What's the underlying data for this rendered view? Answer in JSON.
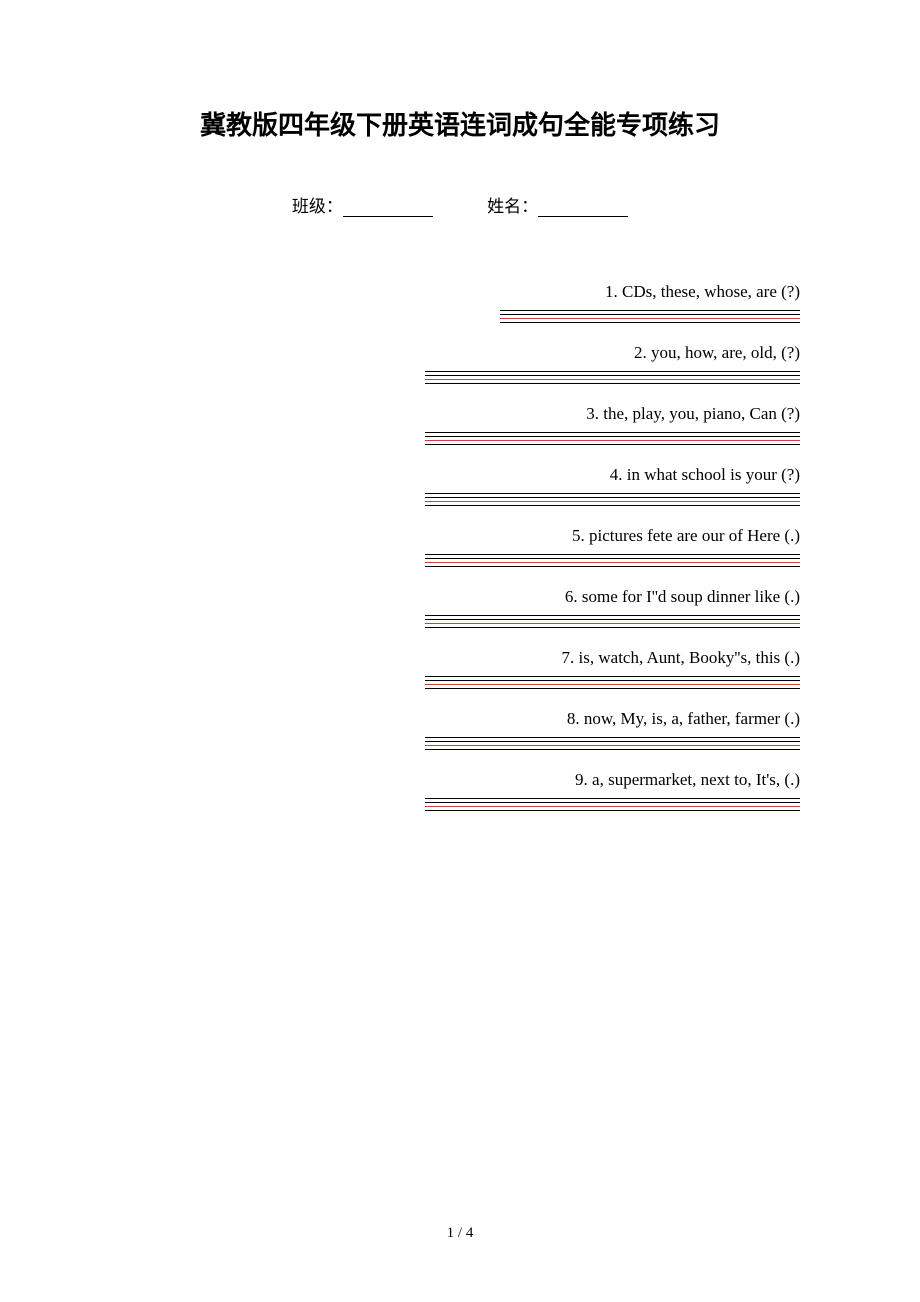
{
  "title": "冀教版四年级下册英语连词成句全能专项练习",
  "header": {
    "class_label": "班级：",
    "name_label": "姓名："
  },
  "line_colors": {
    "black": "#000000",
    "red": "#d04040"
  },
  "line_widths": {
    "short": 300,
    "long": 375
  },
  "questions": [
    {
      "text": "1. CDs, these, whose, are (?)",
      "line_pattern": [
        "short-black",
        "short-black",
        "short-red",
        "short-black"
      ]
    },
    {
      "text": "2. you, how, are, old, (?)",
      "line_pattern": [
        "long-black",
        "long-black",
        "long-red",
        "long-black"
      ]
    },
    {
      "text": "3. the, play, you, piano, Can (?)",
      "line_pattern": [
        "long-black",
        "long-black",
        "long-red",
        "long-black"
      ]
    },
    {
      "text": "4. in  what  school  is  your (?)",
      "line_pattern": [
        "long-black",
        "long-black",
        "long-red",
        "long-black"
      ]
    },
    {
      "text": "5. pictures  fete  are  our  of  Here (.)",
      "line_pattern": [
        "long-black",
        "long-black",
        "long-red",
        "long-black"
      ]
    },
    {
      "text": "6. some   for   I''d soup   dinner like (.)",
      "line_pattern": [
        "long-black",
        "long-black",
        "long-red",
        "long-black"
      ]
    },
    {
      "text": "7. is, watch, Aunt, Booky''s, this (.)",
      "line_pattern": [
        "long-black",
        "long-black",
        "long-red",
        "long-black"
      ]
    },
    {
      "text": "8. now, My, is, a, father, farmer (.)",
      "line_pattern": [
        "long-black",
        "long-black",
        "long-red",
        "long-black"
      ]
    },
    {
      "text": "9. a, supermarket, next to, It's, (.)",
      "line_pattern": [
        "long-black",
        "long-black",
        "long-red",
        "long-black"
      ]
    }
  ],
  "footer": "1 / 4"
}
